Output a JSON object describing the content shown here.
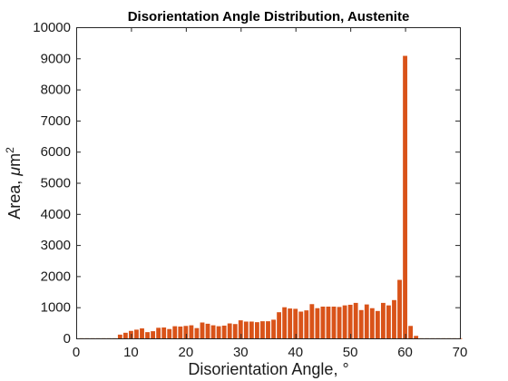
{
  "chart_data": {
    "type": "bar",
    "title": "Disorientation Angle Distribution, Austenite",
    "xlabel": "Disorientation Angle, °",
    "ylabel_main": "Area, ",
    "ylabel_mu": "μ",
    "ylabel_unit": "m",
    "ylabel_sup": "2",
    "xlim": [
      0,
      70
    ],
    "ylim": [
      0,
      10000
    ],
    "xticks": [
      0,
      10,
      20,
      30,
      40,
      50,
      60,
      70
    ],
    "yticks": [
      0,
      1000,
      2000,
      3000,
      4000,
      5000,
      6000,
      7000,
      8000,
      9000,
      10000
    ],
    "bar_color": "#D95319",
    "grid": false,
    "series": [
      {
        "x": [
          1,
          2,
          3,
          4,
          5,
          6,
          7,
          8,
          9,
          10,
          11,
          12,
          13,
          14,
          15,
          16,
          17,
          18,
          19,
          20,
          21,
          22,
          23,
          24,
          25,
          26,
          27,
          28,
          29,
          30,
          31,
          32,
          33,
          34,
          35,
          36,
          37,
          38,
          39,
          40,
          41,
          42,
          43,
          44,
          45,
          46,
          47,
          48,
          49,
          50,
          51,
          52,
          53,
          54,
          55,
          56,
          57,
          58,
          59,
          60,
          61,
          62,
          63,
          64,
          65,
          66,
          67,
          68,
          69,
          70
        ],
        "values": [
          5,
          5,
          5,
          5,
          5,
          5,
          5,
          120,
          180,
          240,
          280,
          320,
          200,
          230,
          340,
          350,
          300,
          390,
          380,
          400,
          420,
          330,
          510,
          470,
          420,
          390,
          410,
          480,
          460,
          580,
          540,
          540,
          520,
          550,
          550,
          600,
          840,
          1000,
          960,
          950,
          860,
          900,
          1100,
          970,
          1020,
          1020,
          1020,
          1010,
          1060,
          1080,
          1140,
          910,
          1090,
          970,
          880,
          1140,
          1060,
          1230,
          1880,
          9080,
          400,
          80,
          5,
          5,
          5,
          5,
          5,
          5,
          5,
          5
        ]
      }
    ]
  }
}
